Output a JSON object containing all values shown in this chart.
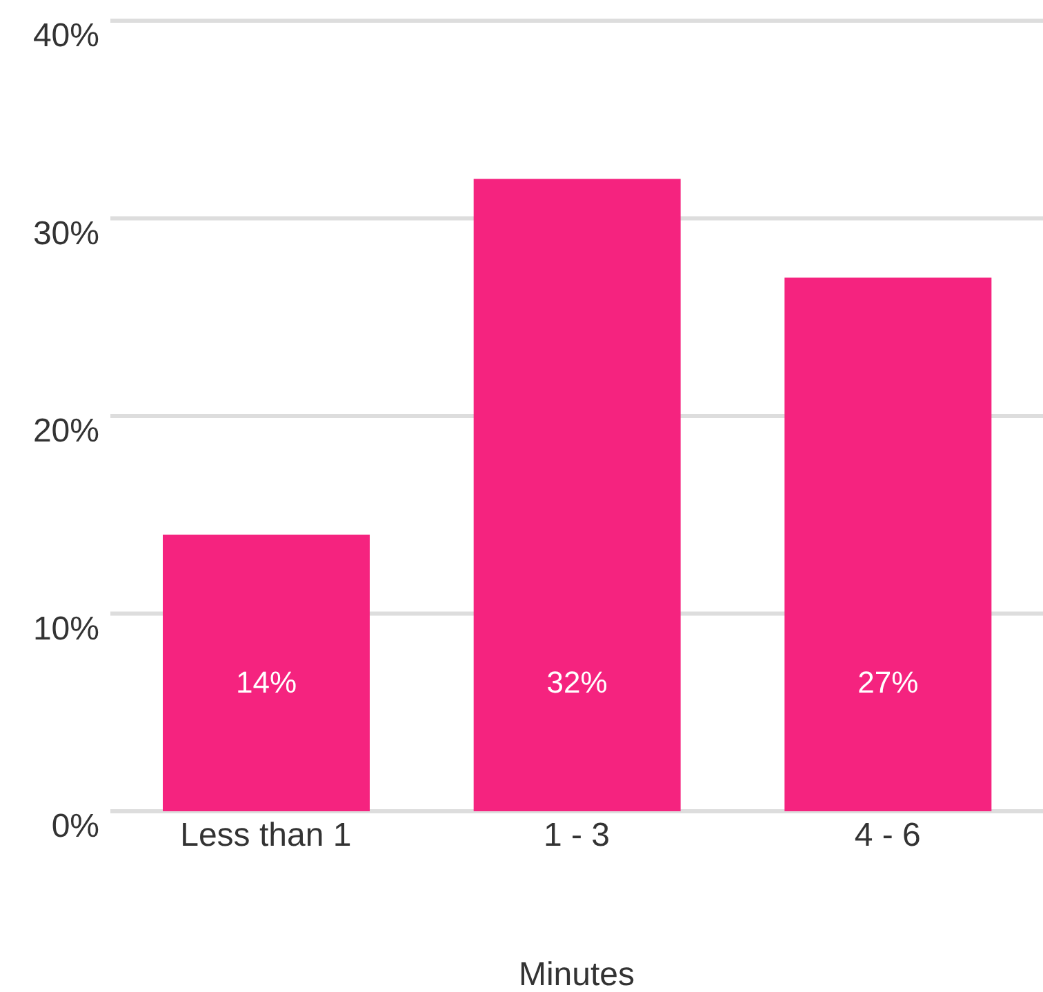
{
  "chart_data": {
    "type": "bar",
    "xlabel": "Minutes",
    "categories": [
      "Less than 1",
      "1 - 3",
      "4 - 6"
    ],
    "values": [
      14,
      32,
      27
    ],
    "value_labels": [
      "14%",
      "32%",
      "27%"
    ],
    "color": "#f5237f",
    "ylim": [
      0,
      40
    ],
    "yticks": [
      {
        "value": 0,
        "label": "0%"
      },
      {
        "value": 10,
        "label": "10%"
      },
      {
        "value": 20,
        "label": "20%"
      },
      {
        "value": 30,
        "label": "30%"
      },
      {
        "value": 40,
        "label": "40%"
      }
    ],
    "grid": "y",
    "legend": false
  }
}
